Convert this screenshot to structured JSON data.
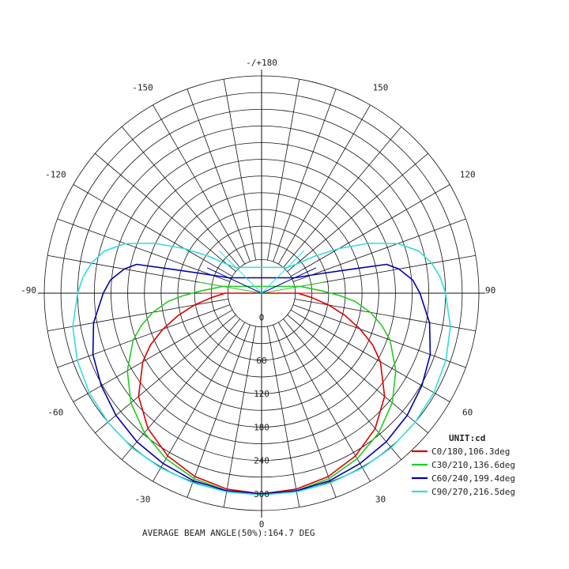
{
  "chart_data": {
    "type": "polar",
    "angle_labels": [
      {
        "deg": 180,
        "text": "-/+180"
      },
      {
        "deg": 150,
        "text": "150"
      },
      {
        "deg": -150,
        "text": "-150"
      },
      {
        "deg": 120,
        "text": "120"
      },
      {
        "deg": -120,
        "text": "-120"
      },
      {
        "deg": 90,
        "text": "90"
      },
      {
        "deg": -90,
        "text": "-90"
      },
      {
        "deg": 60,
        "text": "60"
      },
      {
        "deg": -60,
        "text": "-60"
      },
      {
        "deg": 30,
        "text": "30"
      },
      {
        "deg": -30,
        "text": "-30"
      },
      {
        "deg": 0,
        "text": "0"
      }
    ],
    "radial_ticks": [
      0,
      60,
      120,
      180,
      240,
      300
    ],
    "rmax": 330,
    "unit_label": "UNIT:cd",
    "series": [
      {
        "name": "C0/180,106.3deg",
        "color": "#dd0000",
        "points": [
          [
            0,
            300
          ],
          [
            10,
            297
          ],
          [
            20,
            290
          ],
          [
            30,
            277
          ],
          [
            40,
            257
          ],
          [
            50,
            228
          ],
          [
            60,
            186
          ],
          [
            65,
            160
          ],
          [
            70,
            128
          ],
          [
            75,
            95
          ],
          [
            80,
            62
          ],
          [
            85,
            30
          ],
          [
            90,
            5
          ]
        ]
      },
      {
        "name": "C30/210,136.6deg",
        "color": "#22cc22",
        "points": [
          [
            0,
            302
          ],
          [
            10,
            300
          ],
          [
            20,
            294
          ],
          [
            30,
            283
          ],
          [
            40,
            267
          ],
          [
            50,
            246
          ],
          [
            60,
            218
          ],
          [
            70,
            185
          ],
          [
            75,
            163
          ],
          [
            80,
            138
          ],
          [
            85,
            108
          ],
          [
            88,
            82
          ],
          [
            92,
            50
          ],
          [
            95,
            30
          ],
          [
            100,
            10
          ]
        ]
      },
      {
        "name": "C60/240,199.4deg",
        "color": "#0000aa",
        "points": [
          [
            0,
            300
          ],
          [
            10,
            300
          ],
          [
            20,
            298
          ],
          [
            30,
            293
          ],
          [
            40,
            288
          ],
          [
            50,
            281
          ],
          [
            60,
            272
          ],
          [
            70,
            262
          ],
          [
            80,
            246
          ],
          [
            90,
            224
          ],
          [
            95,
            212
          ],
          [
            100,
            190
          ],
          [
            103,
            170
          ],
          [
            105,
            105
          ],
          [
            108,
            55
          ],
          [
            112,
            20
          ],
          [
            115,
            5
          ]
        ]
      },
      {
        "name": "C90/270,216.5deg",
        "color": "#33dddd",
        "points": [
          [
            0,
            302
          ],
          [
            10,
            302
          ],
          [
            20,
            302
          ],
          [
            30,
            302
          ],
          [
            40,
            302
          ],
          [
            50,
            300
          ],
          [
            60,
            297
          ],
          [
            70,
            292
          ],
          [
            80,
            284
          ],
          [
            90,
            270
          ],
          [
            95,
            262
          ],
          [
            100,
            250
          ],
          [
            105,
            232
          ],
          [
            110,
            200
          ],
          [
            115,
            152
          ],
          [
            120,
            100
          ],
          [
            125,
            55
          ],
          [
            130,
            20
          ],
          [
            135,
            5
          ]
        ]
      }
    ],
    "footer": "AVERAGE BEAM ANGLE(50%):164.7 DEG"
  }
}
